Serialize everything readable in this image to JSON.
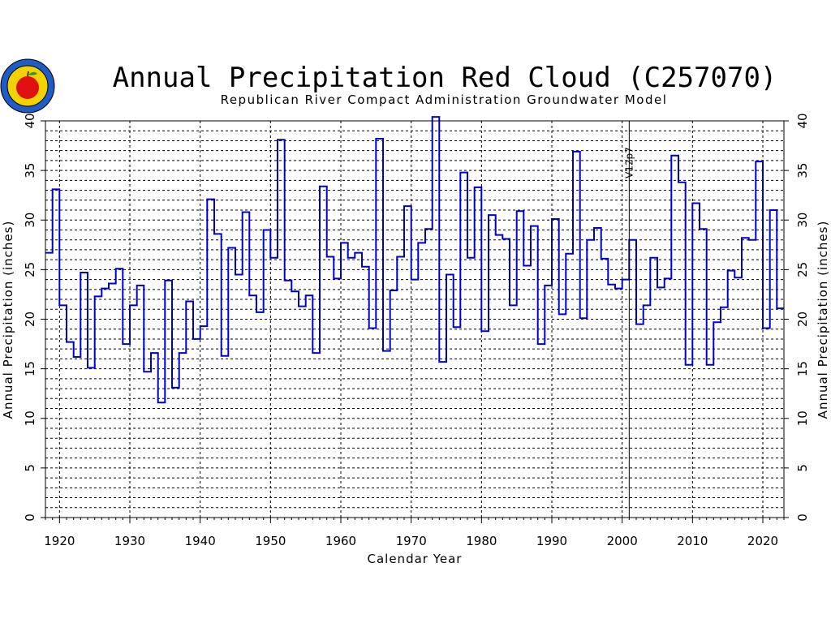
{
  "chart_data": {
    "type": "line",
    "step": true,
    "title": "Annual Precipitation Red Cloud (C257070)",
    "subtitle": "Republican River Compact Administration Groundwater Model",
    "xlabel": "Calendar Year",
    "ylabel_left": "Annual Precipitation (inches)",
    "ylabel_right": "Annual Precipitation (inches)",
    "xlim": [
      1918,
      2023
    ],
    "ylim": [
      0,
      40
    ],
    "x_ticks": [
      1920,
      1930,
      1940,
      1950,
      1960,
      1970,
      1980,
      1990,
      2000,
      2010,
      2020
    ],
    "y_ticks": [
      0,
      5,
      10,
      15,
      20,
      25,
      30,
      35,
      40
    ],
    "grid": true,
    "series_color": "#0000cc",
    "annotation": {
      "text": "V12p7",
      "x": 2001
    },
    "x": [
      1918,
      1919,
      1920,
      1921,
      1922,
      1923,
      1924,
      1925,
      1926,
      1927,
      1928,
      1929,
      1930,
      1931,
      1932,
      1933,
      1934,
      1935,
      1936,
      1937,
      1938,
      1939,
      1940,
      1941,
      1942,
      1943,
      1944,
      1945,
      1946,
      1947,
      1948,
      1949,
      1950,
      1951,
      1952,
      1953,
      1954,
      1955,
      1956,
      1957,
      1958,
      1959,
      1960,
      1961,
      1962,
      1963,
      1964,
      1965,
      1966,
      1967,
      1968,
      1969,
      1970,
      1971,
      1972,
      1973,
      1974,
      1975,
      1976,
      1977,
      1978,
      1979,
      1980,
      1981,
      1982,
      1983,
      1984,
      1985,
      1986,
      1987,
      1988,
      1989,
      1990,
      1991,
      1992,
      1993,
      1994,
      1995,
      1996,
      1997,
      1998,
      1999,
      2000,
      2001,
      2002,
      2003,
      2004,
      2005,
      2006,
      2007,
      2008,
      2009,
      2010,
      2011,
      2012,
      2013,
      2014,
      2015,
      2016,
      2017,
      2018,
      2019,
      2020,
      2021,
      2022
    ],
    "values": [
      26.7,
      33.1,
      21.4,
      17.7,
      16.2,
      24.7,
      15.1,
      22.3,
      23.1,
      23.6,
      25.1,
      17.5,
      21.4,
      23.4,
      14.7,
      16.6,
      11.6,
      23.9,
      13.1,
      16.6,
      21.8,
      18.0,
      19.3,
      32.1,
      28.6,
      16.3,
      27.2,
      24.5,
      30.8,
      22.4,
      20.7,
      29.0,
      26.2,
      38.1,
      23.9,
      22.8,
      21.3,
      22.4,
      16.6,
      33.4,
      26.3,
      24.1,
      27.7,
      26.2,
      26.7,
      25.3,
      19.1,
      38.2,
      16.8,
      22.9,
      26.3,
      31.4,
      24.0,
      27.7,
      29.1,
      40.4,
      15.7,
      24.5,
      19.2,
      34.8,
      26.2,
      33.3,
      18.8,
      30.5,
      28.5,
      28.1,
      21.4,
      30.9,
      25.4,
      29.4,
      17.5,
      23.4,
      30.1,
      20.5,
      26.6,
      36.9,
      20.1,
      28.0,
      29.2,
      26.1,
      23.5,
      23.1,
      24.0,
      28.0,
      19.5,
      21.4,
      26.2,
      23.2,
      24.1,
      36.5,
      33.8,
      15.4,
      31.7,
      29.1,
      15.4,
      19.7,
      21.2,
      24.9,
      24.2,
      28.2,
      28.0,
      35.9,
      19.1,
      31.0,
      21.1
    ]
  }
}
